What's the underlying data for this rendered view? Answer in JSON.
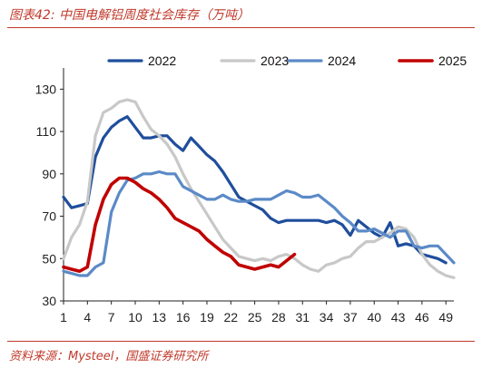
{
  "title": "图表42: 中国电解铝周度社会库存（万吨）",
  "source": "资料来源：Mysteel，国盛证券研究所",
  "chart_data": {
    "type": "line",
    "title": "图表42: 中国电解铝周度社会库存（万吨）",
    "xlabel": "",
    "ylabel": "",
    "xlim": [
      1,
      50
    ],
    "ylim": [
      30,
      140
    ],
    "x_ticks": [
      1,
      4,
      7,
      10,
      13,
      16,
      19,
      22,
      25,
      28,
      31,
      34,
      37,
      40,
      43,
      46,
      49
    ],
    "y_ticks": [
      30,
      50,
      70,
      90,
      110,
      130
    ],
    "grid": false,
    "legend_position": "top",
    "series": [
      {
        "name": "2022",
        "color": "#1f4e9c",
        "width": 3.2,
        "x": [
          1,
          2,
          3,
          4,
          5,
          6,
          7,
          8,
          9,
          10,
          11,
          12,
          13,
          14,
          15,
          16,
          17,
          18,
          19,
          20,
          21,
          22,
          23,
          24,
          25,
          26,
          27,
          28,
          29,
          30,
          31,
          32,
          33,
          34,
          35,
          36,
          37,
          38,
          39,
          40,
          41,
          42,
          43,
          44,
          45,
          46,
          47,
          48,
          49
        ],
        "values": [
          79,
          74,
          75,
          76,
          98,
          107,
          112,
          115,
          117,
          112,
          107,
          107,
          108,
          108,
          104,
          101,
          107,
          103,
          99,
          96,
          91,
          85,
          79,
          77,
          75,
          73,
          69,
          67,
          68,
          68,
          68,
          68,
          68,
          67,
          68,
          66,
          61,
          68,
          65,
          62,
          60,
          67,
          56,
          57,
          56,
          52,
          51,
          50,
          48
        ]
      },
      {
        "name": "2023",
        "color": "#c8c8c8",
        "width": 3.2,
        "x": [
          1,
          2,
          3,
          4,
          5,
          6,
          7,
          8,
          9,
          10,
          11,
          12,
          13,
          14,
          15,
          16,
          17,
          18,
          19,
          20,
          21,
          22,
          23,
          24,
          25,
          26,
          27,
          28,
          29,
          30,
          31,
          32,
          33,
          34,
          35,
          36,
          37,
          38,
          39,
          40,
          41,
          42,
          43,
          44,
          45,
          46,
          47,
          48,
          49,
          50
        ],
        "values": [
          50,
          60,
          66,
          77,
          108,
          119,
          121,
          124,
          125,
          124,
          117,
          111,
          108,
          104,
          98,
          90,
          83,
          77,
          71,
          65,
          59,
          55,
          51,
          50,
          49,
          50,
          49,
          51,
          52,
          50,
          47,
          45,
          44,
          47,
          48,
          50,
          51,
          55,
          58,
          58,
          60,
          62,
          65,
          64,
          60,
          52,
          47,
          44,
          42,
          41
        ]
      },
      {
        "name": "2024",
        "color": "#5b8ac7",
        "width": 3.2,
        "x": [
          1,
          2,
          3,
          4,
          5,
          6,
          7,
          8,
          9,
          10,
          11,
          12,
          13,
          14,
          15,
          16,
          17,
          18,
          19,
          20,
          21,
          22,
          23,
          24,
          25,
          26,
          27,
          28,
          29,
          30,
          31,
          32,
          33,
          34,
          35,
          36,
          37,
          38,
          39,
          40,
          41,
          42,
          43,
          44,
          45,
          46,
          47,
          48,
          49,
          50
        ],
        "values": [
          44,
          43,
          42,
          42,
          46,
          48,
          72,
          81,
          87,
          88,
          90,
          90,
          91,
          90,
          90,
          84,
          82,
          80,
          78,
          78,
          80,
          78,
          77,
          77,
          78,
          78,
          78,
          80,
          82,
          81,
          79,
          79,
          80,
          77,
          74,
          70,
          67,
          63,
          63,
          64,
          62,
          60,
          63,
          63,
          56,
          55,
          56,
          56,
          52,
          48
        ]
      },
      {
        "name": "2025",
        "color": "#c00000",
        "width": 3.6,
        "x": [
          1,
          2,
          3,
          4,
          5,
          6,
          7,
          8,
          9,
          10,
          11,
          12,
          13,
          14,
          15,
          16,
          17,
          18,
          19,
          20,
          21,
          22,
          23,
          24,
          25,
          26,
          27,
          28,
          29,
          30
        ],
        "values": [
          46,
          45,
          44,
          46,
          66,
          78,
          85,
          88,
          88,
          86,
          83,
          81,
          78,
          74,
          69,
          67,
          65,
          63,
          59,
          56,
          53,
          51,
          47,
          46,
          45,
          46,
          47,
          46,
          49,
          52
        ]
      }
    ]
  }
}
